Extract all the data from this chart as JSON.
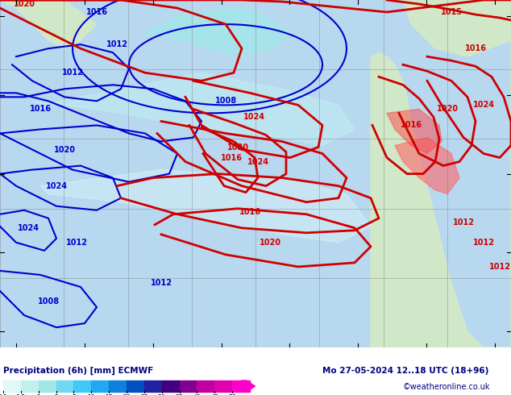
{
  "title_label": "Precipitation (6h) [mm] ECMWF",
  "date_label": "Mo 27-05-2024 12..18 UTC (18+96)",
  "colorbar_values": [
    0.1,
    0.5,
    1,
    2,
    5,
    10,
    15,
    20,
    25,
    30,
    35,
    40,
    45,
    50
  ],
  "colorbar_colors": [
    "#e0f8f8",
    "#c0f0f0",
    "#a0e8e8",
    "#70d8f0",
    "#40c8f8",
    "#20a8f0",
    "#1080e0",
    "#0050c0",
    "#2020a0",
    "#400080",
    "#800090",
    "#c000a0",
    "#e000b0",
    "#ff00c8"
  ],
  "background_map_color": "#b8d8f0",
  "land_color": "#d0e8c8",
  "high_land_color": "#c8c8a0",
  "grid_color": "#808080",
  "blue_contour_color": "#0000cd",
  "red_contour_color": "#cd0000",
  "bottom_label_color": "#000080",
  "copyright_text": "©weatheronline.co.uk",
  "fig_width": 6.34,
  "fig_height": 4.9,
  "dpi": 100
}
